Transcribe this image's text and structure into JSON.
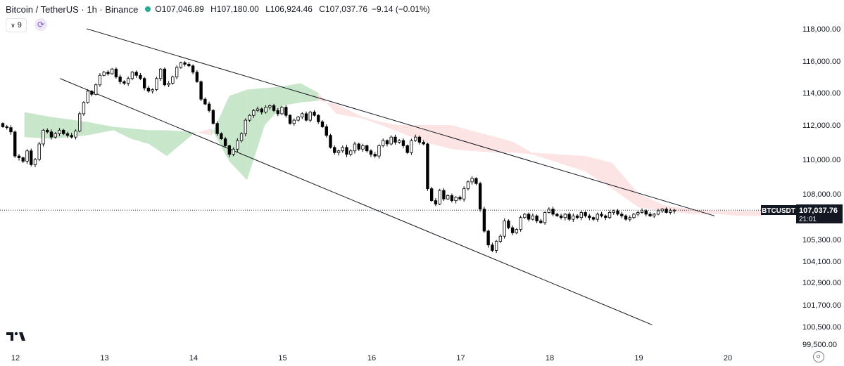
{
  "header": {
    "symbol": "Bitcoin / TetherUS · 1h · Binance",
    "open_label": "O",
    "open": "107,046.89",
    "high_label": "H",
    "high": "107,180.00",
    "low_label": "L",
    "low": "106,924.46",
    "close_label": "C",
    "close": "107,037.76",
    "change": "−9.14 (−0.01%)",
    "status_color": "#22ab94"
  },
  "toolbar": {
    "indicator_count": "9"
  },
  "price_tag": {
    "ticker": "BTCUSDT",
    "price": "107,037.76",
    "countdown": "21:01"
  },
  "chart_data": {
    "type": "candlestick",
    "title": "",
    "x_ticks": [
      "12",
      "13",
      "14",
      "15",
      "16",
      "17",
      "18",
      "19",
      "20"
    ],
    "y_ticks": [
      "118,000.00",
      "116,000.00",
      "114,000.00",
      "112,000.00",
      "110,000.00",
      "108,000.00",
      "105,300.00",
      "104,100.00",
      "102,900.00",
      "101,700.00",
      "100,500.00",
      "99,500.00"
    ],
    "last_price": 107037.76,
    "trendlines": [
      {
        "name": "upper",
        "from": {
          "day": 12.8,
          "price": 118000
        },
        "to": {
          "day": 19.85,
          "price": 106700
        }
      },
      {
        "name": "lower",
        "from": {
          "day": 12.5,
          "price": 114900
        },
        "to": {
          "day": 19.15,
          "price": 100600
        }
      }
    ],
    "cloud": {
      "days": [
        12.1,
        12.4,
        12.8,
        13.1,
        13.3,
        13.5,
        13.7,
        14.0,
        14.2,
        14.4,
        14.6,
        14.8,
        15.0,
        15.2,
        15.4,
        15.6,
        15.9,
        16.1,
        16.3,
        16.6,
        16.9,
        17.1,
        17.4,
        17.6,
        17.8,
        18.1,
        18.4,
        18.7,
        19.0,
        19.3,
        19.6,
        19.9,
        20.1,
        20.4
      ],
      "span_a": [
        112800,
        112500,
        112200,
        111900,
        111800,
        111700,
        111700,
        111600,
        111400,
        113800,
        114200,
        114300,
        114400,
        114600,
        114000,
        112700,
        112400,
        112000,
        111600,
        111000,
        110600,
        110500,
        110400,
        110400,
        110300,
        109800,
        109300,
        108300,
        107200,
        107000,
        106800,
        106800,
        106700,
        106700
      ],
      "span_b": [
        111300,
        111200,
        111400,
        111700,
        111200,
        110900,
        110200,
        111500,
        111800,
        109900,
        108800,
        112000,
        113200,
        113400,
        113500,
        113300,
        112500,
        112200,
        112000,
        112000,
        112000,
        111700,
        111300,
        111000,
        110400,
        110300,
        110200,
        109800,
        108000,
        107300,
        107100,
        107000,
        107000,
        107000
      ],
      "bull_color": "#c8e6c9",
      "bear_color": "#fce4e4"
    },
    "candles_close": [
      111900,
      111850,
      111600,
      110200,
      110100,
      109900,
      110500,
      109700,
      110000,
      110900,
      111700,
      111600,
      111300,
      111500,
      111700,
      111500,
      111400,
      111300,
      111650,
      112700,
      113400,
      114100,
      113900,
      114500,
      115100,
      115300,
      115200,
      115500,
      115000,
      114700,
      114600,
      114900,
      115300,
      115100,
      114900,
      114300,
      114100,
      114200,
      114900,
      115500,
      114500,
      114600,
      115000,
      115600,
      115900,
      115800,
      115700,
      115300,
      114700,
      113600,
      113300,
      112900,
      112100,
      111500,
      111200,
      110800,
      110300,
      110600,
      111100,
      111500,
      112300,
      112600,
      112900,
      113000,
      112800,
      113100,
      113200,
      112900,
      112700,
      113100,
      112600,
      112100,
      112300,
      112500,
      112700,
      112300,
      112800,
      112600,
      112200,
      111900,
      111400,
      110700,
      110400,
      110500,
      110700,
      110300,
      110500,
      110900,
      110600,
      110800,
      110500,
      110300,
      110200,
      110800,
      111100,
      110900,
      111300,
      111000,
      111100,
      110800,
      110400,
      111100,
      111300,
      111000,
      110900,
      108300,
      107600,
      107400,
      108200,
      107700,
      107900,
      107600,
      107800,
      107700,
      108300,
      108700,
      108900,
      108600,
      107100,
      105800,
      105000,
      104700,
      105200,
      105500,
      106400,
      106000,
      105700,
      105900,
      106600,
      106800,
      106500,
      106700,
      106400,
      106300,
      106900,
      107100,
      106800,
      106700,
      106600,
      106800,
      106500,
      106700,
      106600,
      106900,
      106700,
      106600,
      106500,
      106800,
      106700,
      106600,
      106900,
      107000,
      106800,
      106700,
      106500,
      106600,
      106800,
      106900,
      107000,
      106800,
      106700,
      106800,
      107000,
      107100,
      106900,
      107000,
      107037.76
    ],
    "up_color": "#ffffff",
    "down_color": "#000000",
    "wick_color": "#000000"
  }
}
